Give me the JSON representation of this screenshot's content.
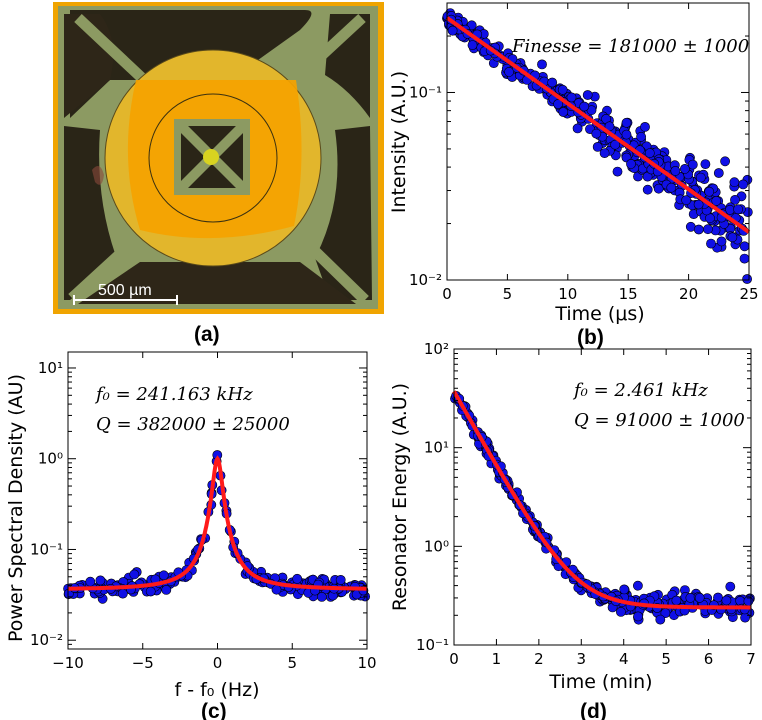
{
  "panel_labels": {
    "a": "(a)",
    "b": "(b)",
    "c": "(c)",
    "d": "(d)"
  },
  "micrograph": {
    "scale_bar": "500 µm"
  },
  "colors": {
    "marker": "#1010e6",
    "fit": "#ff1a1a",
    "gold": "#f5a800",
    "frame": "#8a9a62"
  },
  "chart_data": [
    {
      "id": "b",
      "type": "scatter",
      "yscale": "log",
      "xlabel": "Time (μs)",
      "ylabel": "Intensity (A.U.)",
      "xlim": [
        0,
        25
      ],
      "ylim": [
        0.01,
        0.3
      ],
      "xticks": [
        "0",
        "5",
        "10",
        "15",
        "20",
        "25"
      ],
      "yticks": [
        "10⁻²",
        "10⁻¹"
      ],
      "annotation": "Finesse = 181000 ± 1000",
      "fit": {
        "model": "exponential decay",
        "y0": 0.25,
        "tau_us": 9.5
      },
      "series": [
        {
          "name": "data",
          "x_range": [
            0,
            25
          ],
          "noise": "increasing at late times"
        }
      ]
    },
    {
      "id": "c",
      "type": "scatter",
      "yscale": "log",
      "xlabel": "f - f₀ (Hz)",
      "ylabel": "Power Spectral Density (AU)",
      "xlim": [
        -10,
        10
      ],
      "ylim": [
        0.008,
        15
      ],
      "xticks": [
        "−10",
        "−5",
        "0",
        "5",
        "10"
      ],
      "yticks": [
        "10⁻²",
        "10⁻¹",
        "10⁰",
        "10¹"
      ],
      "annotation_lines": [
        "f₀ = 241.163 kHz",
        "Q = 382000 ± 25000"
      ],
      "fit": {
        "model": "lorentzian",
        "peak": 1.0,
        "background": 0.036,
        "fwhm_hz": 0.63
      },
      "series": [
        {
          "name": "data",
          "x_range": [
            -10,
            10
          ]
        }
      ]
    },
    {
      "id": "d",
      "type": "scatter",
      "yscale": "log",
      "xlabel": "Time (min)",
      "ylabel": "Resonator Energy (A.U.)",
      "xlim": [
        0,
        7
      ],
      "ylim": [
        0.1,
        100
      ],
      "xticks": [
        "0",
        "1",
        "2",
        "3",
        "4",
        "5",
        "6",
        "7"
      ],
      "yticks": [
        "10⁻¹",
        "10⁰",
        "10¹",
        "10²"
      ],
      "annotation_lines": [
        "f₀ = 2.461 kHz",
        "Q = 91000 ± 1000"
      ],
      "fit": {
        "model": "exponential decay + floor",
        "y0": 37,
        "tau_min": 0.57,
        "floor": 0.24
      },
      "series": [
        {
          "name": "data",
          "x_range": [
            0,
            7
          ]
        }
      ]
    }
  ]
}
